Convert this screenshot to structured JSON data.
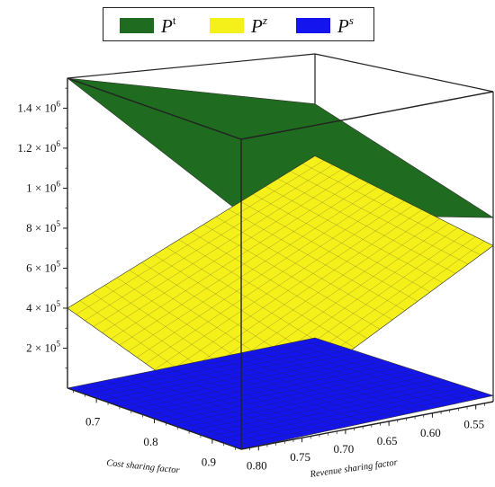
{
  "chart_data": {
    "type": "surface3d",
    "legend": [
      {
        "symbol": "P",
        "superscript": "t",
        "color": "#1f6b1f"
      },
      {
        "symbol": "P",
        "superscript": "z",
        "color": "#f5f019"
      },
      {
        "symbol": "P",
        "superscript": "s",
        "color": "#1414ee"
      }
    ],
    "z_ticks": [
      {
        "value": 200000,
        "mantissa": "2",
        "exponent": "5"
      },
      {
        "value": 400000,
        "mantissa": "4",
        "exponent": "5"
      },
      {
        "value": 600000,
        "mantissa": "6",
        "exponent": "5"
      },
      {
        "value": 800000,
        "mantissa": "8",
        "exponent": "5"
      },
      {
        "value": 1000000,
        "mantissa": "1",
        "exponent": "6"
      },
      {
        "value": 1200000,
        "mantissa": "1.2",
        "exponent": "6"
      },
      {
        "value": 1400000,
        "mantissa": "1.4",
        "exponent": "6"
      }
    ],
    "cost_sharing_factor": {
      "label": "Cost sharing factor",
      "ticks": [
        "0.7",
        "0.8",
        "0.9"
      ],
      "range": [
        0.65,
        0.95
      ]
    },
    "revenue_sharing_factor": {
      "label": "Revenue sharing factor",
      "ticks": [
        "0.80",
        "0.75",
        "0.70",
        "0.65",
        "0.60",
        "0.55"
      ],
      "range": [
        0.53,
        0.82
      ]
    },
    "zlim": [
      0,
      1550000
    ],
    "series": [
      {
        "name": "P^t",
        "corners": {
          "near_left": 1550000,
          "near_right": 1180000,
          "far_left": 1300000,
          "far_right": 920000
        }
      },
      {
        "name": "P^z",
        "corners": {
          "near_left": 400000,
          "near_right": 90000,
          "far_left": 1040000,
          "far_right": 780000
        }
      },
      {
        "name": "P^s",
        "corners": {
          "near_left": 0,
          "near_right": 0,
          "far_left": 130000,
          "far_right": 30000
        }
      }
    ]
  }
}
